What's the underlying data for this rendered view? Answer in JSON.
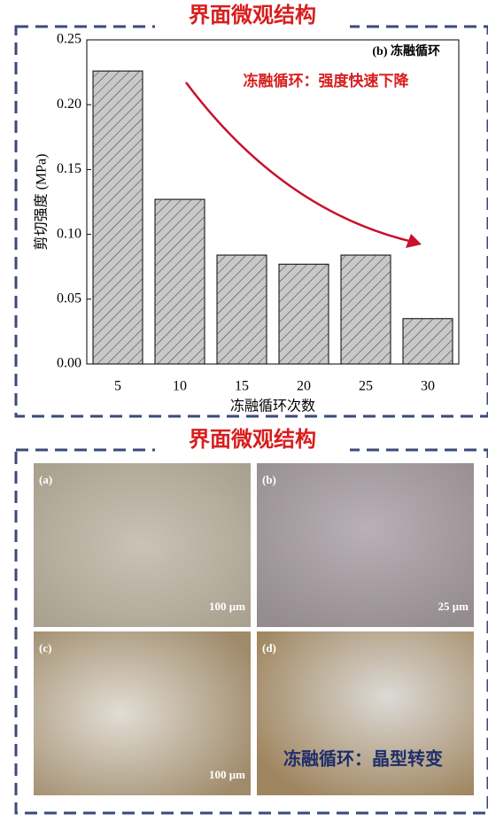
{
  "chart_data": {
    "type": "bar",
    "title": "界面微观结构",
    "annotations": [
      "(b) 冻融循环",
      "冻融循环：强度快速下降"
    ],
    "x_label": "冻融循环次数",
    "y_label": "剪切强度 (MPa)",
    "categories": [
      "5",
      "10",
      "15",
      "20",
      "25",
      "30"
    ],
    "values": [
      0.226,
      0.127,
      0.084,
      0.077,
      0.084,
      0.035
    ],
    "color": "#c8c8c8",
    "ylim": [
      0,
      0.25
    ],
    "yticks": [
      {
        "value": 0,
        "label": "0.00"
      },
      {
        "value": 0.05,
        "label": "0.05"
      },
      {
        "value": 0.1,
        "label": "0.10"
      },
      {
        "value": 0.15,
        "label": "0.15"
      },
      {
        "value": 0.2,
        "label": "0.20"
      },
      {
        "value": 0.25,
        "label": "0.25"
      }
    ]
  },
  "panel": {
    "title": "界面微观结构",
    "images": [
      {
        "label": "(a)",
        "scale": "100 μm"
      },
      {
        "label": "(b)",
        "scale": "25 μm"
      },
      {
        "label": "(c)",
        "scale": "100 μm"
      },
      {
        "label": "(d)"
      }
    ],
    "caption": "冻融循环：晶型转变"
  }
}
